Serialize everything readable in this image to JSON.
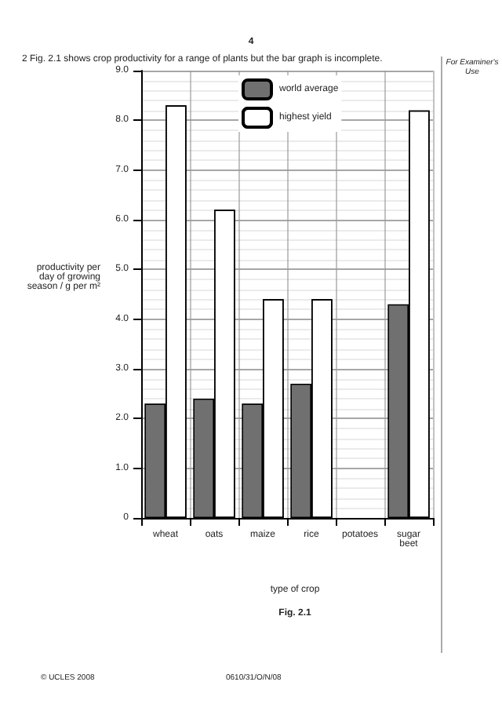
{
  "chart_data": {
    "type": "bar",
    "title": "2   Fig. 2.1 shows crop productivity for a range of plants but the bar graph is incomplete.",
    "xlabel": "type of crop",
    "ylabel": "productivity per day of growing season / g per m²",
    "categories": [
      "wheat",
      "oats",
      "maize",
      "rice",
      "potatoes",
      "sugar beet"
    ],
    "series": [
      {
        "name": "world average",
        "color": "#707070",
        "values": [
          2.3,
          2.4,
          2.3,
          2.7,
          null,
          4.3
        ]
      },
      {
        "name": "highest yield",
        "color": "#ffffff",
        "values": [
          8.3,
          6.2,
          4.4,
          4.4,
          null,
          8.2
        ]
      }
    ],
    "ylim": [
      0,
      9
    ],
    "yticks": [
      0,
      {
        "value": 1,
        "label": "1.0"
      },
      {
        "value": 2,
        "label": "2.0"
      },
      {
        "value": 3,
        "label": "3.0"
      },
      {
        "value": 4,
        "label": "4.0"
      },
      {
        "value": 5,
        "label": "5.0"
      },
      {
        "value": 6,
        "label": "6.0"
      },
      {
        "value": 7,
        "label": "7.0"
      },
      {
        "value": 8,
        "label": "8.0"
      },
      {
        "value": 9,
        "label": "9.0"
      }
    ],
    "grid": true,
    "legend": "top",
    "annotations": [
      "4",
      "For Examiner's Use",
      "Fig. 2.1",
      "© UCLES 2008",
      "0610/31/O/N/08"
    ]
  }
}
